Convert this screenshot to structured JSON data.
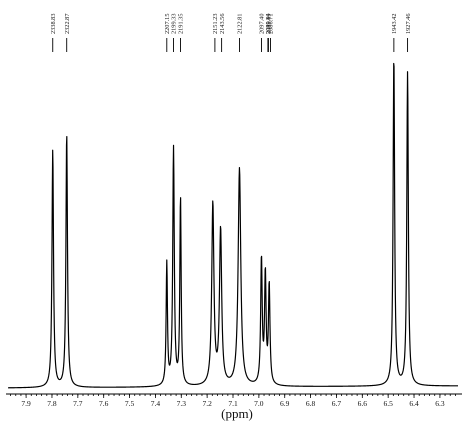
{
  "chart_data": {
    "type": "line",
    "title": "",
    "xlabel": "(ppm)",
    "ylabel": "",
    "xlim": [
      7.97,
      6.23
    ],
    "x_reversed": true,
    "ticks": [
      "7.9",
      "7.8",
      "7.7",
      "7.6",
      "7.5",
      "7.4",
      "7.3",
      "7.2",
      "7.1",
      "7.0",
      "6.9",
      "6.8",
      "6.7",
      "6.6",
      "6.5",
      "6.4",
      "6.3"
    ],
    "tick_values": [
      7.9,
      7.8,
      7.7,
      7.6,
      7.5,
      7.4,
      7.3,
      7.2,
      7.1,
      7.0,
      6.9,
      6.8,
      6.7,
      6.6,
      6.5,
      6.4,
      6.3
    ],
    "peak_labels": [
      {
        "text": "2338.83",
        "ppm": 7.797
      },
      {
        "text": "2322.87",
        "ppm": 7.743
      },
      {
        "text": "2207.15",
        "ppm": 7.356
      },
      {
        "text": "2199.33",
        "ppm": 7.33
      },
      {
        "text": "2191.35",
        "ppm": 7.303
      },
      {
        "text": "2151.23",
        "ppm": 7.17
      },
      {
        "text": "2143.56",
        "ppm": 7.144
      },
      {
        "text": "2122.81",
        "ppm": 7.075
      },
      {
        "text": "2097.40",
        "ppm": 6.99
      },
      {
        "text": "2089.84",
        "ppm": 6.965
      },
      {
        "text": "2089.19",
        "ppm": 6.963
      },
      {
        "text": "2086.71",
        "ppm": 6.955
      }
    ],
    "marker_labels": [
      {
        "text": "1943.42",
        "ppm": 6.478
      },
      {
        "text": "1927.46",
        "ppm": 6.425
      }
    ],
    "peaks": [
      {
        "ppm": 7.797,
        "height": 0.72,
        "width": 0.0035
      },
      {
        "ppm": 7.743,
        "height": 0.77,
        "width": 0.0035
      },
      {
        "ppm": 7.356,
        "height": 0.37,
        "width": 0.003
      },
      {
        "ppm": 7.33,
        "height": 0.72,
        "width": 0.0035
      },
      {
        "ppm": 7.303,
        "height": 0.57,
        "width": 0.003
      },
      {
        "ppm": 7.178,
        "height": 0.55,
        "width": 0.005
      },
      {
        "ppm": 7.148,
        "height": 0.47,
        "width": 0.005
      },
      {
        "ppm": 7.075,
        "height": 0.66,
        "width": 0.006
      },
      {
        "ppm": 6.99,
        "height": 0.38,
        "width": 0.0035
      },
      {
        "ppm": 6.975,
        "height": 0.33,
        "width": 0.0035
      },
      {
        "ppm": 6.96,
        "height": 0.3,
        "width": 0.0035
      },
      {
        "ppm": 6.478,
        "height": 1.0,
        "width": 0.0035
      },
      {
        "ppm": 6.425,
        "height": 0.95,
        "width": 0.0035
      }
    ],
    "grid": false
  }
}
